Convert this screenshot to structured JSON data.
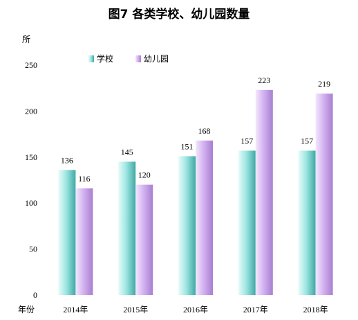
{
  "chart_data": {
    "type": "bar",
    "title": "图7  各类学校、幼儿园数量",
    "ylabel": "所",
    "xlabel": "年份",
    "categories": [
      "2014年",
      "2015年",
      "2016年",
      "2017年",
      "2018年"
    ],
    "series": [
      {
        "name": "学校",
        "values": [
          136,
          145,
          151,
          157,
          157
        ],
        "color": "#5fd1cf"
      },
      {
        "name": "幼儿园",
        "values": [
          116,
          120,
          168,
          223,
          219
        ],
        "color": "#c9a2ea"
      }
    ],
    "ylim": [
      0,
      250
    ],
    "yticks": [
      0,
      50,
      100,
      150,
      200,
      250
    ],
    "grid": false,
    "legend": "top-center"
  }
}
